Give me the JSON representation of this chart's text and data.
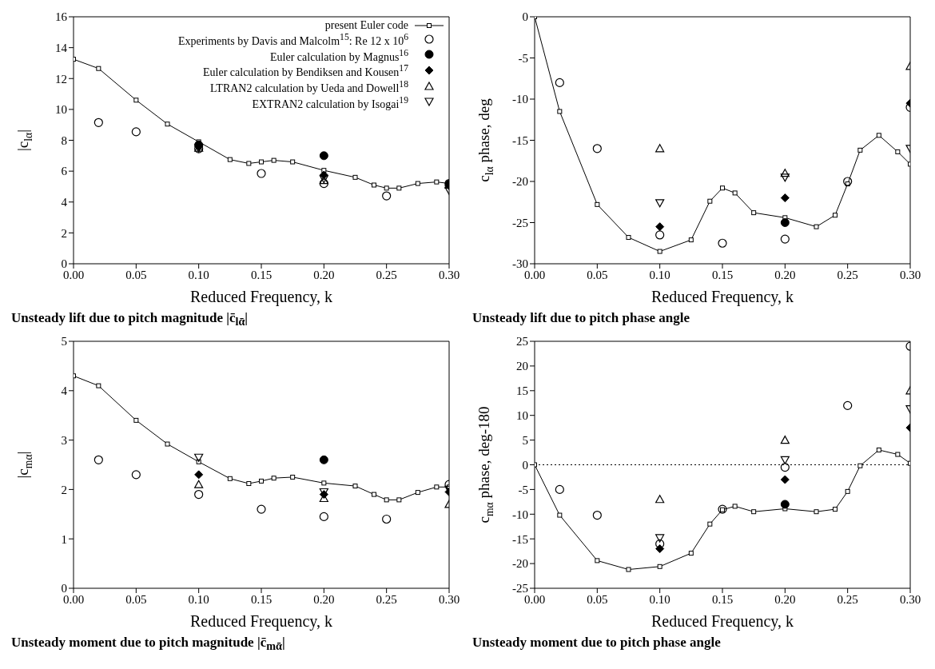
{
  "chart_data": [
    {
      "type": "scatter",
      "title": "Unsteady lift due to pitch magnitude |c̄$_{lᾱ}$|",
      "xlabel": "Reduced Frequency, k",
      "ylabel": "|c$_{lα}$|",
      "xlim": [
        0,
        0.3
      ],
      "xticks": [
        {
          "value": 0,
          "label": "0.00"
        },
        {
          "value": 0.05,
          "label": "0.05"
        },
        {
          "value": 0.1,
          "label": "0.10"
        },
        {
          "value": 0.15,
          "label": "0.15"
        },
        {
          "value": 0.2,
          "label": "0.20"
        },
        {
          "value": 0.25,
          "label": "0.25"
        },
        {
          "value": 0.3,
          "label": "0.30"
        }
      ],
      "ylim": [
        0,
        16
      ],
      "yticks": [
        0,
        2,
        4,
        6,
        8,
        10,
        12,
        14,
        16
      ],
      "legend": "top right",
      "line_style": "solid",
      "series": [
        {
          "name": "present Euler code",
          "type": "line",
          "marker": "square",
          "color": "#000000",
          "x": [
            0,
            0.02,
            0.05,
            0.075,
            0.1,
            0.125,
            0.14,
            0.15,
            0.16,
            0.175,
            0.2,
            0.225,
            0.24,
            0.25,
            0.26,
            0.275,
            0.29,
            0.3
          ],
          "values": [
            13.25,
            12.65,
            10.6,
            9.05,
            7.9,
            6.75,
            6.5,
            6.6,
            6.7,
            6.6,
            6.05,
            5.6,
            5.1,
            4.9,
            4.9,
            5.2,
            5.3,
            5.2
          ]
        },
        {
          "name": "Experiments by Davis and Malcolm$^{15}$: Re 12 x 10$^{6}$",
          "type": "scatter",
          "marker": "circle",
          "color": "#000000",
          "x": [
            0.02,
            0.05,
            0.1,
            0.15,
            0.2,
            0.25,
            0.3
          ],
          "values": [
            9.15,
            8.55,
            7.45,
            5.85,
            5.2,
            4.4,
            5.2
          ]
        },
        {
          "name": "Euler calculation by Magnus$^{16}$",
          "type": "scatter",
          "marker": "filled-circle",
          "color": "#000000",
          "x": [
            0.1,
            0.2,
            0.3
          ],
          "values": [
            7.7,
            7.0,
            5.15
          ]
        },
        {
          "name": "Euler calculation by Bendiksen and Kousen$^{17}$",
          "type": "scatter",
          "marker": "diamond",
          "color": "#000000",
          "x": [
            0.1,
            0.2,
            0.3
          ],
          "values": [
            7.6,
            5.75,
            5.05
          ]
        },
        {
          "name": "LTRAN2 calculation by Ueda and Dowell$^{18}$",
          "type": "scatter",
          "marker": "triangle",
          "color": "#000000",
          "x": [
            0.1,
            0.2,
            0.3
          ],
          "values": [
            7.5,
            5.4,
            5.1
          ]
        },
        {
          "name": "EXTRAN2 calculation by Isogai$^{19}$",
          "type": "scatter",
          "marker": "triangle-down",
          "color": "#000000",
          "x": [
            0.1,
            0.2,
            0.3
          ],
          "values": [
            7.5,
            5.5,
            4.75
          ]
        }
      ]
    },
    {
      "type": "scatter",
      "title": "Unsteady lift due to pitch phase angle",
      "xlabel": "Reduced Frequency, k",
      "ylabel": "c$_{lα}$ phase, deg",
      "xlim": [
        0,
        0.3
      ],
      "xticks": [
        {
          "value": 0,
          "label": "0.00"
        },
        {
          "value": 0.05,
          "label": "0.05"
        },
        {
          "value": 0.1,
          "label": "0.10"
        },
        {
          "value": 0.15,
          "label": "0.15"
        },
        {
          "value": 0.2,
          "label": "0.20"
        },
        {
          "value": 0.25,
          "label": "0.25"
        },
        {
          "value": 0.3,
          "label": "0.30"
        }
      ],
      "ylim": [
        -30,
        0
      ],
      "yticks": [
        -30,
        -25,
        -20,
        -15,
        -10,
        -5,
        0
      ],
      "line_style": "solid",
      "series": [
        {
          "type": "line",
          "marker": "square",
          "color": "#000000",
          "x": [
            0,
            0.02,
            0.05,
            0.075,
            0.1,
            0.125,
            0.14,
            0.15,
            0.16,
            0.175,
            0.2,
            0.225,
            0.24,
            0.25,
            0.26,
            0.275,
            0.29,
            0.3
          ],
          "values": [
            0,
            -11.5,
            -22.8,
            -26.8,
            -28.5,
            -27.1,
            -22.4,
            -20.8,
            -21.4,
            -23.8,
            -24.4,
            -25.5,
            -24.1,
            -20.3,
            -16.2,
            -14.4,
            -16.4,
            -17.9
          ]
        },
        {
          "type": "scatter",
          "marker": "circle",
          "color": "#000000",
          "x": [
            0.02,
            0.05,
            0.1,
            0.15,
            0.2,
            0.25,
            0.3
          ],
          "values": [
            -8,
            -16,
            -26.5,
            -27.5,
            -27,
            -20,
            -11
          ]
        },
        {
          "type": "scatter",
          "marker": "filled-circle",
          "color": "#000000",
          "x": [
            0.2
          ],
          "values": [
            -25
          ]
        },
        {
          "type": "scatter",
          "marker": "diamond",
          "color": "#000000",
          "x": [
            0.1,
            0.2,
            0.3
          ],
          "values": [
            -25.5,
            -22,
            -10.5
          ]
        },
        {
          "type": "scatter",
          "marker": "triangle",
          "color": "#000000",
          "x": [
            0.1,
            0.2,
            0.3
          ],
          "values": [
            -16,
            -19,
            -6
          ]
        },
        {
          "type": "scatter",
          "marker": "triangle-down",
          "color": "#000000",
          "x": [
            0.1,
            0.2,
            0.3
          ],
          "values": [
            -22.6,
            -19.5,
            -16
          ]
        }
      ]
    },
    {
      "type": "scatter",
      "title": "Unsteady moment due to pitch magnitude |c̄$_{mᾱ}$|",
      "xlabel": "Reduced Frequency, k",
      "ylabel": "|c$_{mα}$|",
      "xlim": [
        0,
        0.3
      ],
      "xticks": [
        {
          "value": 0,
          "label": "0.00"
        },
        {
          "value": 0.05,
          "label": "0.05"
        },
        {
          "value": 0.1,
          "label": "0.10"
        },
        {
          "value": 0.15,
          "label": "0.15"
        },
        {
          "value": 0.2,
          "label": "0.20"
        },
        {
          "value": 0.25,
          "label": "0.25"
        },
        {
          "value": 0.3,
          "label": "0.30"
        }
      ],
      "ylim": [
        0,
        5
      ],
      "yticks": [
        0,
        1,
        2,
        3,
        4,
        5
      ],
      "line_style": "solid",
      "series": [
        {
          "type": "line",
          "marker": "square",
          "color": "#000000",
          "x": [
            0,
            0.02,
            0.05,
            0.075,
            0.1,
            0.125,
            0.14,
            0.15,
            0.16,
            0.175,
            0.2,
            0.225,
            0.24,
            0.25,
            0.26,
            0.275,
            0.29,
            0.3
          ],
          "values": [
            4.3,
            4.1,
            3.4,
            2.92,
            2.56,
            2.22,
            2.12,
            2.17,
            2.23,
            2.25,
            2.13,
            2.07,
            1.9,
            1.79,
            1.79,
            1.94,
            2.05,
            2.05
          ]
        },
        {
          "type": "scatter",
          "marker": "circle",
          "color": "#000000",
          "x": [
            0.02,
            0.05,
            0.1,
            0.15,
            0.2,
            0.25,
            0.3
          ],
          "values": [
            2.6,
            2.3,
            1.9,
            1.6,
            1.45,
            1.4,
            2.1
          ]
        },
        {
          "type": "scatter",
          "marker": "filled-circle",
          "color": "#000000",
          "x": [
            0.2
          ],
          "values": [
            2.6
          ]
        },
        {
          "type": "scatter",
          "marker": "diamond",
          "color": "#000000",
          "x": [
            0.1,
            0.2,
            0.3
          ],
          "values": [
            2.3,
            1.9,
            1.95
          ]
        },
        {
          "type": "scatter",
          "marker": "triangle",
          "color": "#000000",
          "x": [
            0.1,
            0.2,
            0.3
          ],
          "values": [
            2.1,
            1.82,
            1.7
          ]
        },
        {
          "type": "scatter",
          "marker": "triangle-down",
          "color": "#000000",
          "x": [
            0.1,
            0.2,
            0.3
          ],
          "values": [
            2.65,
            1.95,
            2.0
          ]
        }
      ]
    },
    {
      "type": "scatter",
      "title": "Unsteady moment due to pitch phase angle",
      "xlabel": "Reduced Frequency, k",
      "ylabel": "c$_{mα}$ phase, deg-180",
      "xlim": [
        0,
        0.3
      ],
      "xticks": [
        {
          "value": 0,
          "label": "0.00"
        },
        {
          "value": 0.05,
          "label": "0.05"
        },
        {
          "value": 0.1,
          "label": "0.10"
        },
        {
          "value": 0.15,
          "label": "0.15"
        },
        {
          "value": 0.2,
          "label": "0.20"
        },
        {
          "value": 0.25,
          "label": "0.25"
        },
        {
          "value": 0.3,
          "label": "0.30"
        }
      ],
      "ylim": [
        -25,
        25
      ],
      "yticks": [
        -25,
        -20,
        -15,
        -10,
        -5,
        0,
        5,
        10,
        15,
        20,
        25
      ],
      "line_style": "solid",
      "ref_lines": [
        {
          "axis": "y",
          "value": 0,
          "line_style": "dotted",
          "color": "#000000"
        }
      ],
      "series": [
        {
          "type": "line",
          "marker": "square",
          "color": "#000000",
          "x": [
            0,
            0.02,
            0.05,
            0.075,
            0.1,
            0.125,
            0.14,
            0.15,
            0.16,
            0.175,
            0.2,
            0.225,
            0.24,
            0.25,
            0.26,
            0.275,
            0.29,
            0.3
          ],
          "values": [
            0,
            -10.2,
            -19.4,
            -21.2,
            -20.6,
            -17.9,
            -12,
            -9.1,
            -8.4,
            -9.5,
            -8.9,
            -9.5,
            -9,
            -5.4,
            -0.2,
            3.0,
            2.1,
            0.3
          ]
        },
        {
          "type": "scatter",
          "marker": "circle",
          "color": "#000000",
          "x": [
            0.02,
            0.05,
            0.1,
            0.15,
            0.2,
            0.25,
            0.3
          ],
          "values": [
            -5,
            -10.2,
            -16,
            -9,
            -0.5,
            12,
            24
          ]
        },
        {
          "type": "scatter",
          "marker": "filled-circle",
          "color": "#000000",
          "x": [
            0.2
          ],
          "values": [
            -8
          ]
        },
        {
          "type": "scatter",
          "marker": "diamond",
          "color": "#000000",
          "x": [
            0.1,
            0.2,
            0.3
          ],
          "values": [
            -17,
            -3,
            7.5
          ]
        },
        {
          "type": "scatter",
          "marker": "triangle",
          "color": "#000000",
          "x": [
            0.1,
            0.2,
            0.3
          ],
          "values": [
            -7,
            5,
            15
          ]
        },
        {
          "type": "scatter",
          "marker": "triangle-down",
          "color": "#000000",
          "x": [
            0.1,
            0.2,
            0.3
          ],
          "values": [
            -14.8,
            1,
            11.3
          ]
        }
      ]
    }
  ]
}
